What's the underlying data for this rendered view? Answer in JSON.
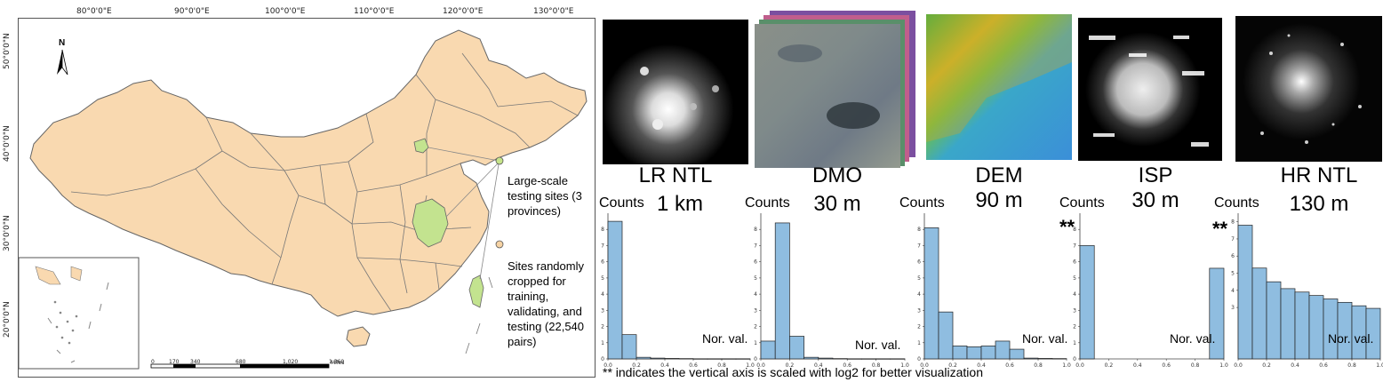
{
  "map": {
    "lon_ticks": [
      "80°0'0\"E",
      "90°0'0\"E",
      "100°0'0\"E",
      "110°0'0\"E",
      "120°0'0\"E",
      "130°0'0\"E"
    ],
    "lat_ticks": [
      "50°0'0\"N",
      "40°0'0\"N",
      "30°0'0\"N",
      "20°0'0\"N"
    ],
    "north": "N",
    "scale_ticks": [
      "0",
      "170",
      "340",
      "680",
      "1,020",
      "1,360"
    ],
    "scale_unit": "Miles",
    "legend": {
      "large_scale": "Large-scale testing sites (3 provinces)",
      "random": "Sites randomly cropped for training, validating, and testing (22,540 pairs)"
    },
    "colors": {
      "land": "#f9d9b0",
      "highlight": "#c3e38f",
      "border": "#666666",
      "legend_green": "#c6e48a",
      "legend_tan": "#f6d3a4"
    }
  },
  "panels": [
    {
      "name": "LR NTL",
      "res": "1 km"
    },
    {
      "name": "DMO",
      "res": "30 m"
    },
    {
      "name": "DEM",
      "res": "90 m"
    },
    {
      "name": "ISP",
      "res": "30 m"
    },
    {
      "name": "HR NTL",
      "res": "130 m"
    }
  ],
  "hist": {
    "counts_label": "Counts",
    "norval_label": "Nor. val.",
    "log_marker": "**",
    "x_ticks": [
      "0.0",
      "0.2",
      "0.4",
      "0.6",
      "0.8",
      "1.0"
    ],
    "bar_color": "#8fbde0"
  },
  "footnote": "** indicates the vertical axis is scaled with log2 for better visualization",
  "chart_data": [
    {
      "type": "bar",
      "title": "LR NTL",
      "xlabel": "Nor. val.",
      "ylabel": "Counts",
      "xlim": [
        0,
        1
      ],
      "ylim": [
        0,
        9
      ],
      "y_ticks": [
        0,
        1,
        2,
        3,
        4,
        5,
        6,
        7,
        8
      ],
      "x": [
        0.0,
        0.1,
        0.2,
        0.3,
        0.4,
        0.5,
        0.6,
        0.7,
        0.8,
        0.9
      ],
      "values": [
        8.5,
        1.5,
        0.1,
        0.05,
        0.03,
        0.02,
        0.01,
        0.01,
        0.01,
        0.01
      ]
    },
    {
      "type": "bar",
      "title": "DMO",
      "xlabel": "Nor. val.",
      "ylabel": "Counts",
      "xlim": [
        0,
        1
      ],
      "ylim": [
        0,
        9
      ],
      "y_ticks": [
        0,
        1,
        2,
        3,
        4,
        5,
        6,
        7,
        8
      ],
      "x": [
        0.0,
        0.1,
        0.2,
        0.3,
        0.4,
        0.5,
        0.6,
        0.7,
        0.8,
        0.9
      ],
      "values": [
        1.1,
        8.4,
        1.4,
        0.1,
        0.05,
        0.02,
        0.01,
        0.01,
        0.01,
        0.01
      ]
    },
    {
      "type": "bar",
      "title": "DEM",
      "xlabel": "Nor. val.",
      "ylabel": "Counts",
      "xlim": [
        0,
        1
      ],
      "ylim": [
        0,
        9
      ],
      "y_ticks": [
        0,
        1,
        2,
        3,
        4,
        5,
        6,
        7,
        8
      ],
      "x": [
        0.0,
        0.1,
        0.2,
        0.3,
        0.4,
        0.5,
        0.6,
        0.7,
        0.8,
        0.9
      ],
      "values": [
        8.1,
        2.9,
        0.8,
        0.75,
        0.8,
        1.1,
        0.6,
        0.05,
        0.03,
        0.02
      ]
    },
    {
      "type": "bar",
      "title": "ISP",
      "xlabel": "Nor. val.",
      "ylabel": "Counts",
      "xlim": [
        0,
        1
      ],
      "ylim": [
        0,
        9
      ],
      "y_scale": "log2",
      "y_ticks": [
        0,
        1,
        2,
        3,
        4,
        5,
        6,
        7,
        8
      ],
      "x": [
        0.0,
        0.9
      ],
      "values": [
        7.0,
        5.6
      ]
    },
    {
      "type": "bar",
      "title": "HR NTL",
      "xlabel": "Nor. val.",
      "ylabel": "Counts",
      "xlim": [
        0,
        1
      ],
      "ylim": [
        0,
        8.5
      ],
      "y_scale": "log2",
      "y_ticks": [
        3,
        4,
        5,
        6,
        7,
        8
      ],
      "x": [
        0.0,
        0.1,
        0.2,
        0.3,
        0.4,
        0.5,
        0.6,
        0.7,
        0.8,
        0.9
      ],
      "values": [
        7.8,
        5.3,
        4.5,
        4.1,
        3.9,
        3.7,
        3.5,
        3.3,
        3.1,
        2.95
      ]
    }
  ]
}
